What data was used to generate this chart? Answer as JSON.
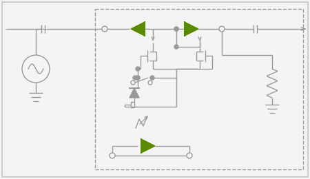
{
  "bg_color": "#f4f4f4",
  "border_color": "#cccccc",
  "line_color": "#999999",
  "green_color": "#5a8a00",
  "figsize": [
    4.5,
    2.6
  ],
  "dpi": 100
}
